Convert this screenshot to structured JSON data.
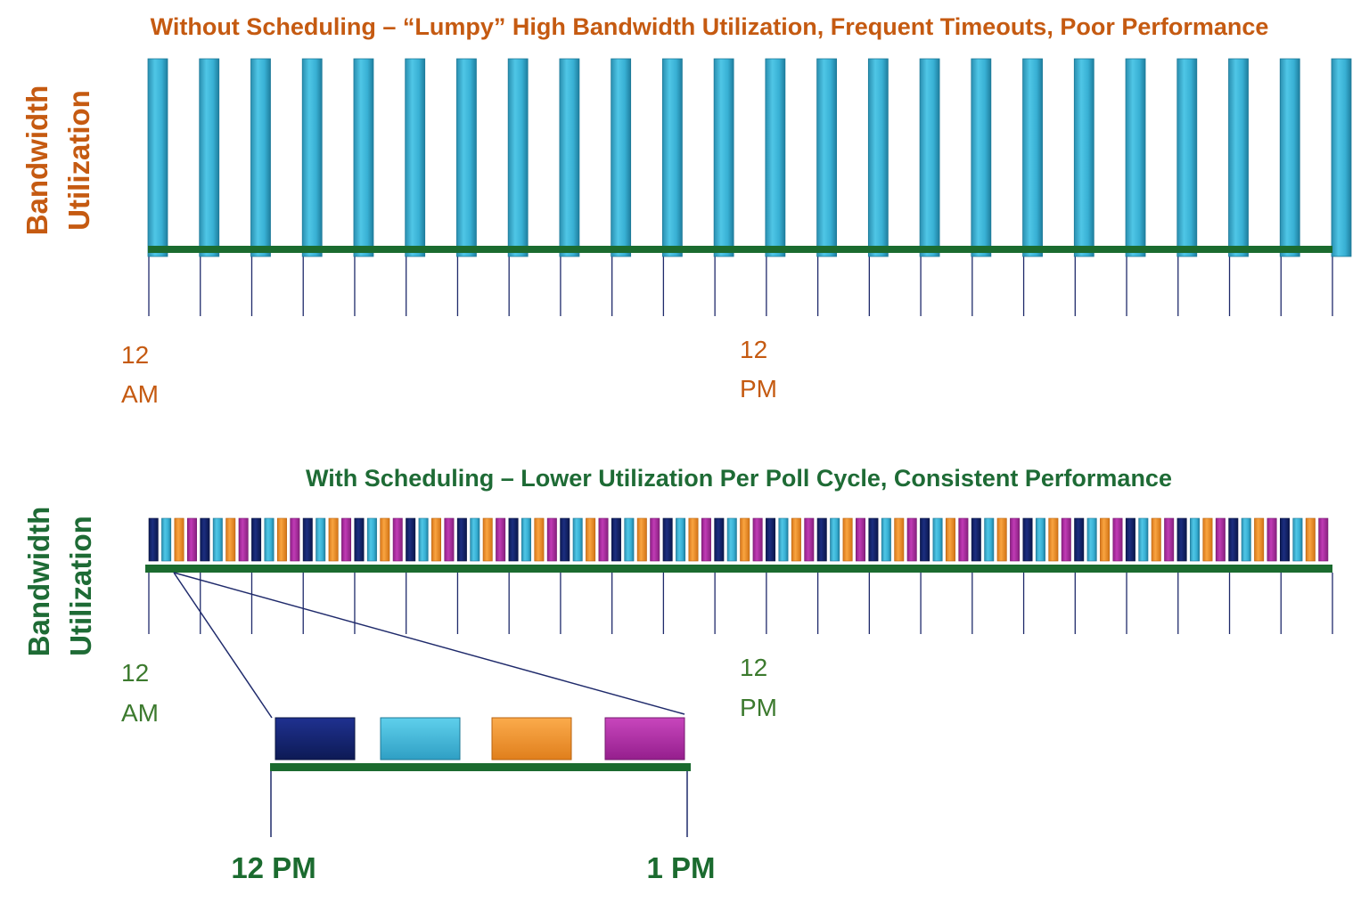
{
  "colors": {
    "orange_text": "#C55A11",
    "green_text": "#1E6B35",
    "baseline_green": "#1B6B2F",
    "tick_navy": "#1F2A6B",
    "block_navy": "#14246A",
    "block_cyan": "#3EB6D8",
    "block_orange": "#F3922C",
    "block_magenta": "#AF2FA3"
  },
  "without": {
    "title": "Without Scheduling – “Lumpy” High Bandwidth Utilization, Frequent Timeouts, Poor Performance",
    "ylabel_line1": "Bandwidth",
    "ylabel_line2": "Utilization",
    "tick_start_line1": "12",
    "tick_start_line2": "AM",
    "tick_mid_line1": "12",
    "tick_mid_line2": "PM",
    "bar_count": 24,
    "bar_level": 1.0
  },
  "with": {
    "title": "With Scheduling – Lower Utilization Per Poll Cycle, Consistent Performance",
    "ylabel_line1": "Bandwidth",
    "ylabel_line2": "Utilization",
    "tick_start_line1": "12",
    "tick_start_line2": "AM",
    "tick_mid_line1": "12",
    "tick_mid_line2": "PM",
    "block_pattern": [
      "navy",
      "cyan",
      "orange",
      "magenta"
    ],
    "block_cycles": 23,
    "block_level": 0.2
  },
  "zoom": {
    "start_label": "12 PM",
    "end_label": "1 PM",
    "blocks": [
      "navy",
      "cyan",
      "orange",
      "magenta"
    ]
  }
}
